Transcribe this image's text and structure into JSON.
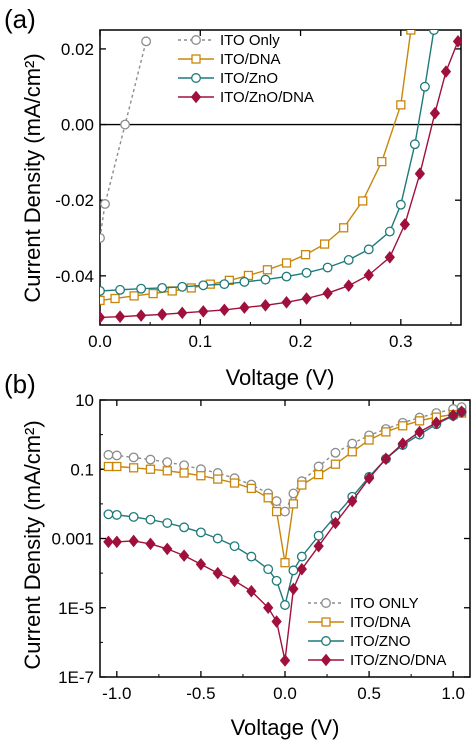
{
  "colors": {
    "ito_only": "#8c8c8c",
    "ito_dna": "#c8860a",
    "ito_zno": "#1f7a7a",
    "ito_zno_dna": "#a0103c",
    "axis": "#000000"
  },
  "chart_data": [
    {
      "panel_label": "(a)",
      "type": "line",
      "xlabel": "Voltage (V)",
      "ylabel": "Current Density (mA/cm²)",
      "xlim": [
        0.0,
        0.36
      ],
      "ylim": [
        -0.053,
        0.025
      ],
      "xticks": [
        "0.0",
        "0.1",
        "0.2",
        "0.3"
      ],
      "yticks": [
        "0.02",
        "0.00",
        "-0.02",
        "-0.04"
      ],
      "legend_position": "top-left",
      "zero_line": true,
      "series": [
        {
          "name": "ITO Only",
          "marker": "open-circle",
          "dashed": true,
          "points": [
            [
              0.0,
              -0.03
            ],
            [
              0.005,
              -0.021
            ],
            [
              0.025,
              0.0
            ],
            [
              0.046,
              0.022
            ]
          ]
        },
        {
          "name": "ITO/DNA",
          "marker": "open-square",
          "dashed": false,
          "points": [
            [
              0.0,
              -0.0465
            ],
            [
              0.015,
              -0.046
            ],
            [
              0.034,
              -0.0453
            ],
            [
              0.053,
              -0.0447
            ],
            [
              0.072,
              -0.044
            ],
            [
              0.091,
              -0.0432
            ],
            [
              0.11,
              -0.0422
            ],
            [
              0.129,
              -0.0412
            ],
            [
              0.148,
              -0.0399
            ],
            [
              0.167,
              -0.0384
            ],
            [
              0.186,
              -0.0366
            ],
            [
              0.205,
              -0.0344
            ],
            [
              0.224,
              -0.0316
            ],
            [
              0.243,
              -0.0273
            ],
            [
              0.262,
              -0.0202
            ],
            [
              0.281,
              -0.0098
            ],
            [
              0.3,
              0.0052
            ],
            [
              0.31,
              0.025
            ]
          ]
        },
        {
          "name": "ITO/ZnO",
          "marker": "open-circle",
          "dashed": false,
          "points": [
            [
              0.0,
              -0.044
            ],
            [
              0.02,
              -0.0437
            ],
            [
              0.041,
              -0.0434
            ],
            [
              0.062,
              -0.0432
            ],
            [
              0.082,
              -0.0429
            ],
            [
              0.103,
              -0.0425
            ],
            [
              0.124,
              -0.0422
            ],
            [
              0.144,
              -0.0416
            ],
            [
              0.165,
              -0.041
            ],
            [
              0.186,
              -0.0402
            ],
            [
              0.206,
              -0.0392
            ],
            [
              0.227,
              -0.0378
            ],
            [
              0.248,
              -0.0358
            ],
            [
              0.268,
              -0.033
            ],
            [
              0.289,
              -0.0283
            ],
            [
              0.3,
              -0.0212
            ],
            [
              0.314,
              -0.0052
            ],
            [
              0.324,
              0.01
            ],
            [
              0.333,
              0.025
            ]
          ]
        },
        {
          "name": "ITO/ZnO/DNA",
          "marker": "filled-diamond",
          "dashed": false,
          "points": [
            [
              0.0,
              -0.051
            ],
            [
              0.02,
              -0.0508
            ],
            [
              0.041,
              -0.0505
            ],
            [
              0.062,
              -0.0502
            ],
            [
              0.082,
              -0.0498
            ],
            [
              0.103,
              -0.0494
            ],
            [
              0.124,
              -0.049
            ],
            [
              0.144,
              -0.0484
            ],
            [
              0.165,
              -0.0478
            ],
            [
              0.186,
              -0.047
            ],
            [
              0.206,
              -0.046
            ],
            [
              0.227,
              -0.0446
            ],
            [
              0.248,
              -0.0426
            ],
            [
              0.268,
              -0.0398
            ],
            [
              0.289,
              -0.0351
            ],
            [
              0.304,
              -0.0264
            ],
            [
              0.319,
              -0.013
            ],
            [
              0.334,
              0.003
            ],
            [
              0.345,
              0.014
            ],
            [
              0.357,
              0.022
            ]
          ]
        }
      ]
    },
    {
      "panel_label": "(b)",
      "type": "line",
      "xlabel": "Voltage (V)",
      "ylabel": "Current Density (mA/cm²)",
      "xlim": [
        -1.1,
        1.1
      ],
      "ylim": [
        1e-07,
        10
      ],
      "yscale": "log",
      "xticks": [
        "-1.0",
        "-0.5",
        "0.0",
        "0.5",
        "1.0"
      ],
      "yticks": [
        "10",
        "0.1",
        "0.001",
        "1E-5",
        "1E-7"
      ],
      "legend_position": "bottom-right",
      "series": [
        {
          "name": "ITO ONLY",
          "marker": "open-circle",
          "dashed": true,
          "points": [
            [
              -1.05,
              0.26
            ],
            [
              -1.0,
              0.25
            ],
            [
              -0.9,
              0.22
            ],
            [
              -0.8,
              0.19
            ],
            [
              -0.7,
              0.16
            ],
            [
              -0.6,
              0.13
            ],
            [
              -0.5,
              0.1
            ],
            [
              -0.4,
              0.078
            ],
            [
              -0.3,
              0.055
            ],
            [
              -0.2,
              0.036
            ],
            [
              -0.1,
              0.02
            ],
            [
              -0.05,
              0.012
            ],
            [
              0.0,
              0.006
            ],
            [
              0.05,
              0.02
            ],
            [
              0.1,
              0.045
            ],
            [
              0.2,
              0.12
            ],
            [
              0.3,
              0.3
            ],
            [
              0.4,
              0.55
            ],
            [
              0.5,
              0.95
            ],
            [
              0.6,
              1.45
            ],
            [
              0.7,
              2.2
            ],
            [
              0.8,
              3.1
            ],
            [
              0.9,
              4.2
            ],
            [
              1.0,
              5.5
            ],
            [
              1.05,
              6.2
            ]
          ]
        },
        {
          "name": "ITO/DNA",
          "marker": "open-square",
          "dashed": false,
          "points": [
            [
              -1.05,
              0.12
            ],
            [
              -1.0,
              0.12
            ],
            [
              -0.9,
              0.11
            ],
            [
              -0.8,
              0.1
            ],
            [
              -0.7,
              0.09
            ],
            [
              -0.6,
              0.078
            ],
            [
              -0.5,
              0.065
            ],
            [
              -0.4,
              0.052
            ],
            [
              -0.3,
              0.04
            ],
            [
              -0.2,
              0.028
            ],
            [
              -0.1,
              0.015
            ],
            [
              -0.05,
              0.006
            ],
            [
              0.0,
              0.0002
            ],
            [
              0.05,
              0.01
            ],
            [
              0.1,
              0.035
            ],
            [
              0.2,
              0.07
            ],
            [
              0.3,
              0.14
            ],
            [
              0.4,
              0.32
            ],
            [
              0.5,
              0.7
            ],
            [
              0.6,
              1.2
            ],
            [
              0.7,
              1.8
            ],
            [
              0.8,
              2.5
            ],
            [
              0.9,
              3.2
            ],
            [
              1.0,
              3.8
            ],
            [
              1.05,
              4.2
            ]
          ]
        },
        {
          "name": "ITO/ZNO",
          "marker": "open-circle",
          "dashed": false,
          "points": [
            [
              -1.05,
              0.005
            ],
            [
              -1.0,
              0.0048
            ],
            [
              -0.9,
              0.0042
            ],
            [
              -0.8,
              0.0035
            ],
            [
              -0.7,
              0.0028
            ],
            [
              -0.6,
              0.0021
            ],
            [
              -0.5,
              0.0015
            ],
            [
              -0.4,
              0.001
            ],
            [
              -0.3,
              0.0006
            ],
            [
              -0.2,
              0.0003
            ],
            [
              -0.1,
              0.00013
            ],
            [
              -0.05,
              6e-05
            ],
            [
              0.0,
              1.2e-05
            ],
            [
              0.05,
              0.00012
            ],
            [
              0.1,
              0.0003
            ],
            [
              0.2,
              0.0012
            ],
            [
              0.3,
              0.0045
            ],
            [
              0.4,
              0.016
            ],
            [
              0.5,
              0.06
            ],
            [
              0.6,
              0.2
            ],
            [
              0.7,
              0.5
            ],
            [
              0.8,
              1.0
            ],
            [
              0.9,
              2.0
            ],
            [
              1.0,
              3.5
            ],
            [
              1.05,
              4.5
            ]
          ]
        },
        {
          "name": "ITO/ZNO/DNA",
          "marker": "filled-diamond",
          "dashed": false,
          "points": [
            [
              -1.05,
              0.0008
            ],
            [
              -1.0,
              0.0008
            ],
            [
              -0.9,
              0.00085
            ],
            [
              -0.8,
              0.0007
            ],
            [
              -0.7,
              0.0005
            ],
            [
              -0.6,
              0.00032
            ],
            [
              -0.5,
              0.00018
            ],
            [
              -0.4,
              0.0001
            ],
            [
              -0.3,
              6e-05
            ],
            [
              -0.2,
              3e-05
            ],
            [
              -0.1,
              1e-05
            ],
            [
              -0.05,
              4e-06
            ],
            [
              0.0,
              3e-07
            ],
            [
              0.05,
              3.5e-05
            ],
            [
              0.1,
              0.00013
            ],
            [
              0.2,
              0.0006
            ],
            [
              0.3,
              0.0028
            ],
            [
              0.4,
              0.012
            ],
            [
              0.5,
              0.055
            ],
            [
              0.6,
              0.2
            ],
            [
              0.7,
              0.55
            ],
            [
              0.8,
              1.2
            ],
            [
              0.9,
              2.2
            ],
            [
              1.0,
              3.6
            ],
            [
              1.05,
              4.6
            ]
          ]
        }
      ]
    }
  ]
}
